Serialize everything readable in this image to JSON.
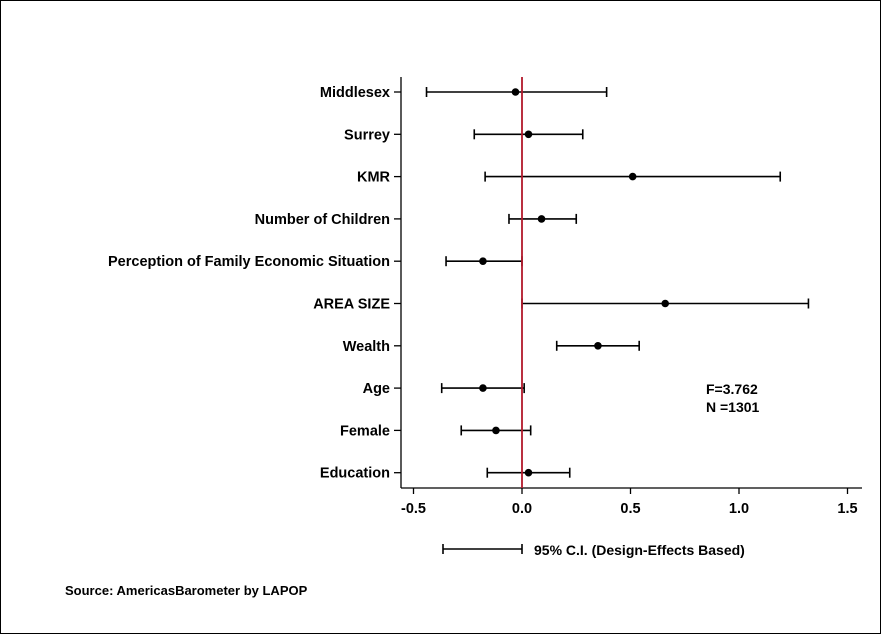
{
  "chart_data": {
    "type": "scatter",
    "variant": "coefficient-plot-with-confidence-intervals",
    "categories": [
      "Middlesex",
      "Surrey",
      "KMR",
      "Number of Children",
      "Perception of Family Economic Situation",
      "AREA SIZE",
      "Wealth",
      "Age",
      "Female",
      "Education"
    ],
    "coefficients": [
      -0.03,
      0.03,
      0.51,
      0.09,
      -0.18,
      0.66,
      0.35,
      -0.18,
      -0.12,
      0.03
    ],
    "ci_lower": [
      -0.44,
      -0.22,
      -0.17,
      -0.06,
      -0.35,
      0.0,
      0.16,
      -0.37,
      -0.28,
      -0.16
    ],
    "ci_upper": [
      0.39,
      0.28,
      1.19,
      0.25,
      0.0,
      1.32,
      0.54,
      0.01,
      0.04,
      0.22
    ],
    "xticks": [
      "-0.5",
      "0.0",
      "0.5",
      "1.0",
      "1.5"
    ],
    "xtick_values": [
      -0.5,
      0.0,
      0.5,
      1.0,
      1.5
    ],
    "xlim": [
      -0.55,
      1.56
    ],
    "reference_line": 0.0,
    "reference_line_color": "#b2182b",
    "grid": false,
    "stats": {
      "f_stat": "F=3.762",
      "n": "N =1301"
    },
    "legend": {
      "label": "95% C.I. (Design-Effects Based)",
      "placement": "bottom"
    },
    "source": "Source: AmericasBarometer by LAPOP"
  }
}
